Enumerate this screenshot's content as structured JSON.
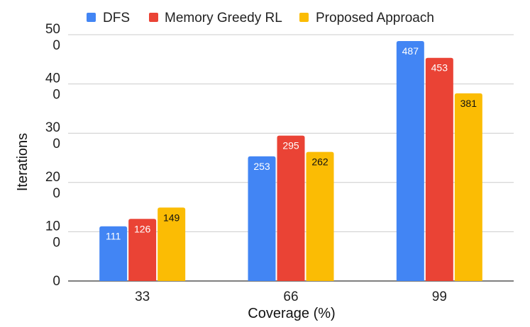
{
  "chart_data": {
    "type": "bar",
    "categories": [
      "33",
      "66",
      "99"
    ],
    "series": [
      {
        "name": "DFS",
        "values": [
          111,
          253,
          487
        ],
        "color": "#4285F4",
        "label_color": "#ffffff"
      },
      {
        "name": "Memory Greedy RL",
        "values": [
          126,
          295,
          453
        ],
        "color": "#EA4335",
        "label_color": "#ffffff"
      },
      {
        "name": "Proposed Approach",
        "values": [
          149,
          262,
          381
        ],
        "color": "#FBBC04",
        "label_color": "#111111"
      }
    ],
    "xlabel": "Coverage (%)",
    "ylabel": "Iterations",
    "ylim": [
      0,
      500
    ],
    "y_ticks": [
      0,
      100,
      200,
      300,
      400,
      500
    ],
    "y_tick_labels": [
      [
        "0"
      ],
      [
        "10",
        "0"
      ],
      [
        "20",
        "0"
      ],
      [
        "30",
        "0"
      ],
      [
        "40",
        "0"
      ],
      [
        "50",
        "0"
      ]
    ],
    "grid": true,
    "legend_position": "top",
    "show_data_labels": true
  }
}
